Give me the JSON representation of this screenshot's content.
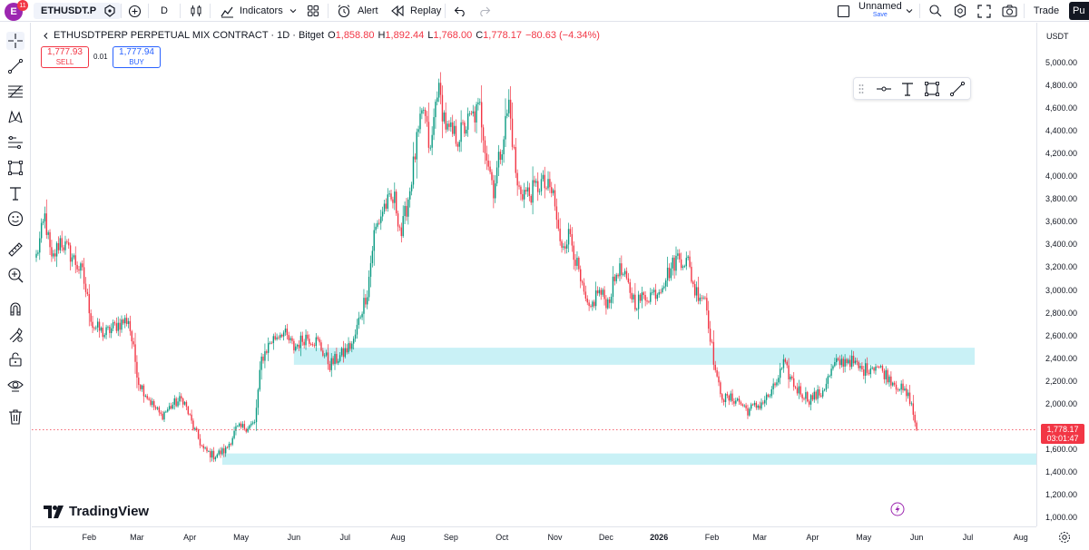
{
  "topbar": {
    "avatar_letter": "E",
    "badge_count": "11",
    "symbol": "ETHUSDT.P",
    "interval": "D",
    "indicators_label": "Indicators",
    "alert_label": "Alert",
    "replay_label": "Replay",
    "layout_name": "Unnamed",
    "save_label": "Save",
    "trade_label": "Trade",
    "publish_label": "Pu"
  },
  "legend": {
    "symbol_full": "ETHUSDTPERP PERPETUAL MIX CONTRACT · 1D · Bitget",
    "open_label": "O",
    "open": "1,858.80",
    "high_label": "H",
    "high": "1,892.44",
    "low_label": "L",
    "low": "1,768.00",
    "close_label": "C",
    "close": "1,778.17",
    "change": "−80.63 (−4.34%)"
  },
  "trade_panel": {
    "sell_price": "1,777.93",
    "sell_label": "SELL",
    "spread": "0.01",
    "buy_price": "1,777.94",
    "buy_label": "BUY"
  },
  "price_axis": {
    "currency": "USDT",
    "labels": [
      "5,000.00",
      "4,800.00",
      "4,600.00",
      "4,400.00",
      "4,200.00",
      "4,000.00",
      "3,800.00",
      "3,600.00",
      "3,400.00",
      "3,200.00",
      "3,000.00",
      "2,800.00",
      "2,600.00",
      "2,400.00",
      "2,200.00",
      "2,000.00",
      "1,600.00",
      "1,400.00",
      "1,200.00",
      "1,000.00"
    ],
    "current_price": "1,778.17",
    "countdown": "03:01:47"
  },
  "time_axis": {
    "labels": [
      "Feb",
      "Mar",
      "Apr",
      "May",
      "Jun",
      "Jul",
      "Aug",
      "Sep",
      "Oct",
      "Nov",
      "Dec",
      "2026",
      "Feb",
      "Mar",
      "Apr",
      "May",
      "Jun",
      "Jul",
      "Aug"
    ]
  },
  "branding": {
    "logo_text": "TradingView"
  },
  "colors": {
    "up": "#089981",
    "down": "#f23645",
    "zone": "#b2ebf2",
    "accent": "#2962ff"
  },
  "chart_data": {
    "type": "candlestick",
    "price_range": [
      1000,
      5000
    ],
    "zones": [
      {
        "from": 2350,
        "to": 2500,
        "start": "2025-06-01",
        "end": "2026-07-05"
      },
      {
        "from": 1470,
        "to": 1570,
        "start": "2025-04-20",
        "end": "2026-08-20"
      }
    ],
    "path": [
      [
        "2025-01-01",
        3300
      ],
      [
        "2025-01-06",
        3650
      ],
      [
        "2025-01-10",
        3250
      ],
      [
        "2025-01-15",
        3450
      ],
      [
        "2025-01-22",
        3300
      ],
      [
        "2025-01-28",
        3150
      ],
      [
        "2025-02-03",
        2700
      ],
      [
        "2025-02-10",
        2620
      ],
      [
        "2025-02-17",
        2700
      ],
      [
        "2025-02-24",
        2750
      ],
      [
        "2025-03-02",
        2200
      ],
      [
        "2025-03-10",
        2000
      ],
      [
        "2025-03-15",
        1900
      ],
      [
        "2025-03-22",
        2000
      ],
      [
        "2025-03-28",
        2050
      ],
      [
        "2025-04-03",
        1800
      ],
      [
        "2025-04-09",
        1600
      ],
      [
        "2025-04-15",
        1550
      ],
      [
        "2025-04-22",
        1600
      ],
      [
        "2025-04-28",
        1780
      ],
      [
        "2025-05-05",
        1810
      ],
      [
        "2025-05-09",
        1830
      ],
      [
        "2025-05-13",
        2400
      ],
      [
        "2025-05-18",
        2550
      ],
      [
        "2025-05-25",
        2650
      ],
      [
        "2025-06-01",
        2500
      ],
      [
        "2025-06-08",
        2600
      ],
      [
        "2025-06-15",
        2550
      ],
      [
        "2025-06-22",
        2350
      ],
      [
        "2025-06-30",
        2450
      ],
      [
        "2025-07-06",
        2550
      ],
      [
        "2025-07-10",
        2800
      ],
      [
        "2025-07-14",
        3000
      ],
      [
        "2025-07-18",
        3500
      ],
      [
        "2025-07-24",
        3750
      ],
      [
        "2025-07-30",
        3800
      ],
      [
        "2025-08-03",
        3500
      ],
      [
        "2025-08-08",
        3900
      ],
      [
        "2025-08-12",
        4300
      ],
      [
        "2025-08-16",
        4600
      ],
      [
        "2025-08-20",
        4200
      ],
      [
        "2025-08-24",
        4800
      ],
      [
        "2025-08-30",
        4400
      ],
      [
        "2025-09-05",
        4350
      ],
      [
        "2025-09-12",
        4500
      ],
      [
        "2025-09-18",
        4600
      ],
      [
        "2025-09-22",
        4200
      ],
      [
        "2025-09-26",
        3900
      ],
      [
        "2025-10-01",
        4300
      ],
      [
        "2025-10-05",
        4650
      ],
      [
        "2025-10-10",
        3900
      ],
      [
        "2025-10-17",
        3850
      ],
      [
        "2025-10-24",
        3950
      ],
      [
        "2025-10-31",
        3850
      ],
      [
        "2025-11-04",
        3400
      ],
      [
        "2025-11-10",
        3500
      ],
      [
        "2025-11-17",
        3000
      ],
      [
        "2025-11-21",
        2800
      ],
      [
        "2025-11-26",
        3000
      ],
      [
        "2025-12-02",
        2900
      ],
      [
        "2025-12-08",
        3200
      ],
      [
        "2025-12-12",
        3100
      ],
      [
        "2025-12-18",
        2900
      ],
      [
        "2025-12-24",
        2950
      ],
      [
        "2025-12-31",
        3000
      ],
      [
        "2026-01-06",
        3150
      ],
      [
        "2026-01-12",
        3300
      ],
      [
        "2026-01-18",
        3250
      ],
      [
        "2026-01-22",
        3000
      ],
      [
        "2026-01-28",
        2950
      ],
      [
        "2026-02-01",
        2500
      ],
      [
        "2026-02-04",
        2200
      ],
      [
        "2026-02-08",
        2050
      ],
      [
        "2026-02-15",
        2050
      ],
      [
        "2026-02-22",
        1950
      ],
      [
        "2026-03-01",
        2000
      ],
      [
        "2026-03-08",
        2100
      ],
      [
        "2026-03-15",
        2350
      ],
      [
        "2026-03-22",
        2150
      ],
      [
        "2026-03-30",
        2050
      ],
      [
        "2026-04-06",
        2100
      ],
      [
        "2026-04-14",
        2350
      ],
      [
        "2026-04-22",
        2400
      ],
      [
        "2026-04-30",
        2300
      ],
      [
        "2026-05-08",
        2350
      ],
      [
        "2026-05-15",
        2250
      ],
      [
        "2026-05-22",
        2150
      ],
      [
        "2026-05-28",
        2050
      ],
      [
        "2026-06-01",
        1780
      ]
    ]
  }
}
